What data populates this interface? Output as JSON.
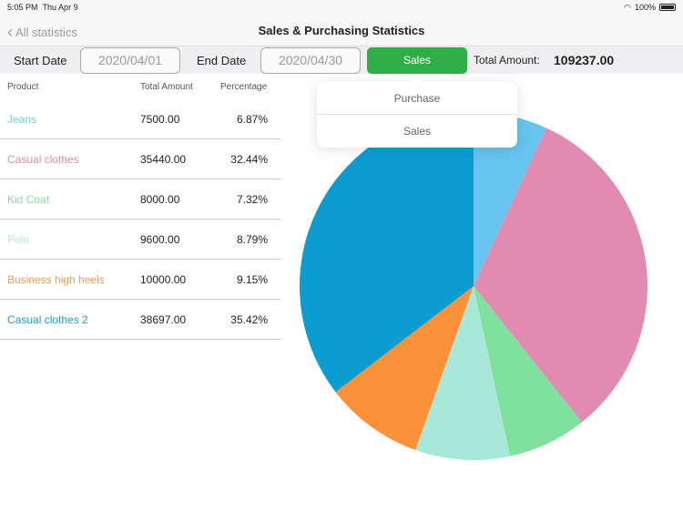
{
  "status": {
    "time": "5:05 PM",
    "date": "Thu Apr 9",
    "battery": "100%",
    "battery_level": 1.0
  },
  "nav": {
    "back": "All statistics",
    "title": "Sales & Purchasing Statistics"
  },
  "filters": {
    "start_label": "Start Date",
    "start_value": "2020/04/01",
    "end_label": "End Date",
    "end_value": "2020/04/30",
    "type_button": "Sales",
    "total_label": "Total Amount:",
    "total_value": "109237.00"
  },
  "table": {
    "headers": [
      "Product",
      "Total Amount",
      "Percentage"
    ],
    "rows": [
      {
        "product": "Jeans",
        "amount": "7500.00",
        "percent": "6.87%",
        "color": "#7ccbe8"
      },
      {
        "product": "Casual clothes",
        "amount": "35440.00",
        "percent": "32.44%",
        "color": "#e08ab0"
      },
      {
        "product": "Kid Coat",
        "amount": "8000.00",
        "percent": "7.32%",
        "color": "#86dca2"
      },
      {
        "product": "Polo",
        "amount": "9600.00",
        "percent": "8.79%",
        "color": "#b0e8dc"
      },
      {
        "product": "Business high heels",
        "amount": "10000.00",
        "percent": "9.15%",
        "color": "#f49a4a"
      },
      {
        "product": "Casual clothes 2",
        "amount": "38697.00",
        "percent": "35.42%",
        "color": "#1d9dc8"
      }
    ]
  },
  "popover": {
    "options": [
      "Purchase",
      "Sales"
    ]
  },
  "chart_data": {
    "type": "pie",
    "categories": [
      "Jeans",
      "Casual clothes",
      "Kid Coat",
      "Polo",
      "Business high heels",
      "Casual clothes 2"
    ],
    "values": [
      7500,
      35440,
      8000,
      9600,
      10000,
      38697
    ],
    "colors": [
      "#66c4ee",
      "#e18bb0",
      "#80e09e",
      "#a8e8d8",
      "#fb923a",
      "#0c9dd0"
    ]
  }
}
